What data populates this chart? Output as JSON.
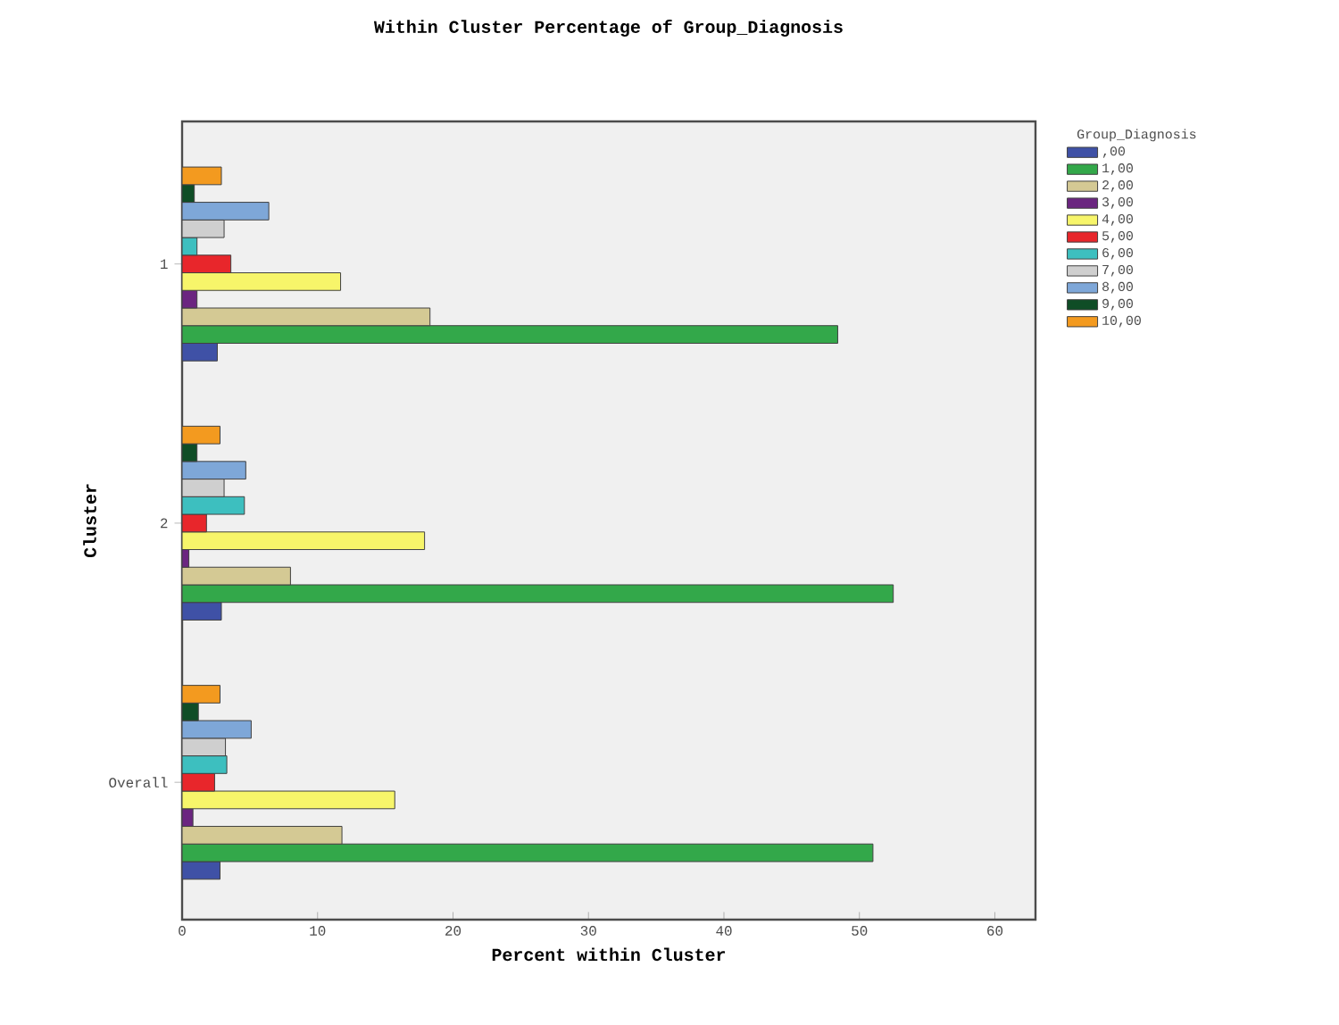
{
  "chart_data": {
    "type": "bar",
    "orientation": "horizontal",
    "title": "Within Cluster Percentage of Group_Diagnosis",
    "xlabel": "Percent within Cluster",
    "ylabel": "Cluster",
    "legend_title": "Group_Diagnosis",
    "legend": "right",
    "categories": [
      "1",
      "2",
      "Overall"
    ],
    "xlim": [
      0,
      63
    ],
    "xticks": [
      0,
      10,
      20,
      30,
      40,
      50,
      60
    ],
    "series": [
      {
        "name": ",00",
        "color": "#3f51a6",
        "values": [
          2.6,
          2.9,
          2.8
        ]
      },
      {
        "name": "1,00",
        "color": "#33a84a",
        "values": [
          48.4,
          52.5,
          51.0
        ]
      },
      {
        "name": "2,00",
        "color": "#d4c994",
        "values": [
          18.3,
          8.0,
          11.8
        ]
      },
      {
        "name": "3,00",
        "color": "#6b2580",
        "values": [
          1.1,
          0.5,
          0.8
        ]
      },
      {
        "name": "4,00",
        "color": "#f7f56a",
        "values": [
          11.7,
          17.9,
          15.7
        ]
      },
      {
        "name": "5,00",
        "color": "#e8262b",
        "values": [
          3.6,
          1.8,
          2.4
        ]
      },
      {
        "name": "6,00",
        "color": "#3dbfbf",
        "values": [
          1.1,
          4.6,
          3.3
        ]
      },
      {
        "name": "7,00",
        "color": "#cfcfcf",
        "values": [
          3.1,
          3.1,
          3.2
        ]
      },
      {
        "name": "8,00",
        "color": "#7ea7d8",
        "values": [
          6.4,
          4.7,
          5.1
        ]
      },
      {
        "name": "9,00",
        "color": "#0f4d26",
        "values": [
          0.9,
          1.1,
          1.2
        ]
      },
      {
        "name": "10,00",
        "color": "#f39a1f",
        "values": [
          2.9,
          2.8,
          2.8
        ]
      }
    ]
  }
}
